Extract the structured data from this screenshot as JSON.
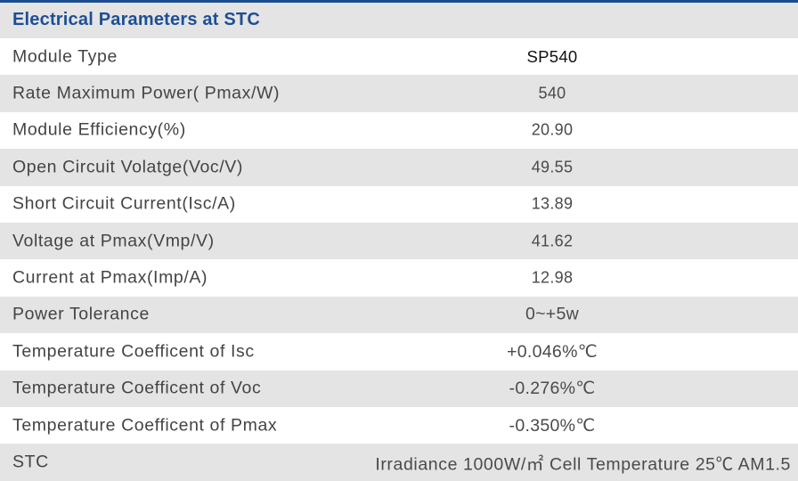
{
  "title": "Electrical Parameters at STC",
  "rows": [
    {
      "label": "Module Type",
      "value": "SP540"
    },
    {
      "label": "Rate Maximum Power( Pmax/W)",
      "value": "540"
    },
    {
      "label": "Module Efficiency(%)",
      "value": "20.90"
    },
    {
      "label": "Open Circuit Volatge(Voc/V)",
      "value": "49.55"
    },
    {
      "label": "Short Circuit Current(Isc/A)",
      "value": "13.89"
    },
    {
      "label": "Voltage at Pmax(Vmp/V)",
      "value": "41.62"
    },
    {
      "label": "Current at Pmax(Imp/A)",
      "value": "12.98"
    },
    {
      "label": "Power Tolerance",
      "value": "0~+5w"
    },
    {
      "label": "Temperature Coefficent of Isc",
      "value": "+0.046%℃"
    },
    {
      "label": "Temperature Coefficent of Voc",
      "value": "-0.276%℃"
    },
    {
      "label": "Temperature Coefficent of Pmax",
      "value": "-0.350%℃"
    },
    {
      "label": "STC",
      "value": "Irradiance 1000W/㎡ Cell Temperature 25℃ AM1.5"
    }
  ]
}
